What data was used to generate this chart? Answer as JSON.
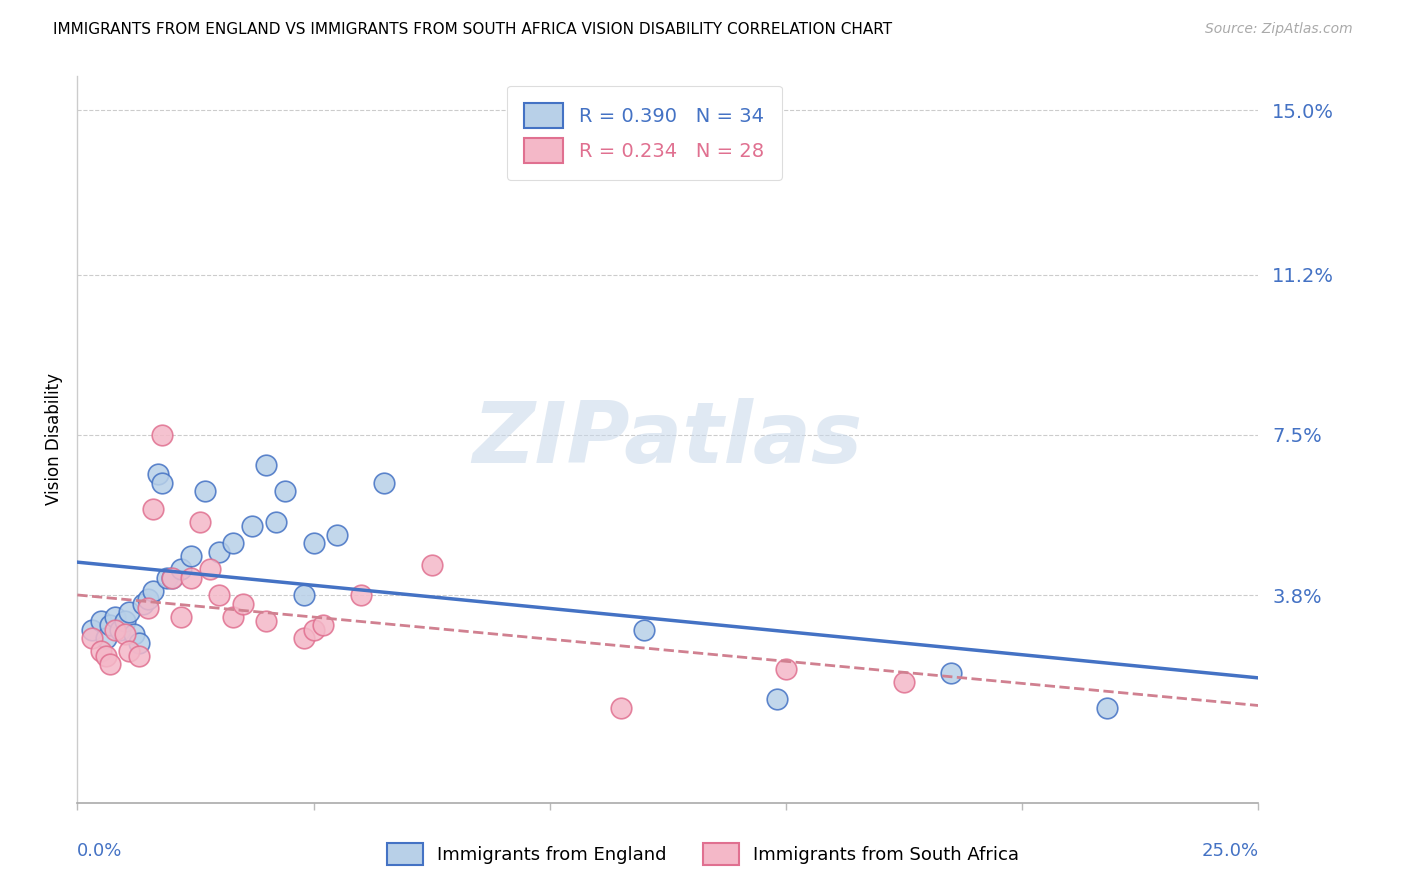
{
  "title": "IMMIGRANTS FROM ENGLAND VS IMMIGRANTS FROM SOUTH AFRICA VISION DISABILITY CORRELATION CHART",
  "source": "Source: ZipAtlas.com",
  "ylabel": "Vision Disability",
  "xlim": [
    0.0,
    0.25
  ],
  "ylim": [
    -0.01,
    0.158
  ],
  "england_face_color": "#b8d0e8",
  "england_edge_color": "#4472c4",
  "sa_face_color": "#f4b8c8",
  "sa_edge_color": "#e07090",
  "england_line_color": "#4472c4",
  "sa_line_color": "#d08090",
  "england_R": "0.390",
  "england_N": "34",
  "sa_R": "0.234",
  "sa_N": "28",
  "watermark": "ZIPatlas",
  "label_color": "#4472c4",
  "ytick_positions": [
    0.038,
    0.075,
    0.112,
    0.15
  ],
  "ytick_labels": [
    "3.8%",
    "7.5%",
    "11.2%",
    "15.0%"
  ],
  "england_x": [
    0.003,
    0.005,
    0.006,
    0.007,
    0.008,
    0.009,
    0.01,
    0.011,
    0.012,
    0.013,
    0.014,
    0.015,
    0.016,
    0.017,
    0.018,
    0.019,
    0.02,
    0.022,
    0.024,
    0.027,
    0.03,
    0.033,
    0.037,
    0.04,
    0.042,
    0.044,
    0.048,
    0.05,
    0.055,
    0.065,
    0.12,
    0.148,
    0.185,
    0.218
  ],
  "england_y": [
    0.03,
    0.032,
    0.028,
    0.031,
    0.033,
    0.03,
    0.032,
    0.034,
    0.029,
    0.027,
    0.036,
    0.037,
    0.039,
    0.066,
    0.064,
    0.042,
    0.042,
    0.044,
    0.047,
    0.062,
    0.048,
    0.05,
    0.054,
    0.068,
    0.055,
    0.062,
    0.038,
    0.05,
    0.052,
    0.064,
    0.03,
    0.014,
    0.02,
    0.012
  ],
  "sa_x": [
    0.003,
    0.005,
    0.006,
    0.007,
    0.008,
    0.01,
    0.011,
    0.013,
    0.015,
    0.016,
    0.018,
    0.02,
    0.022,
    0.024,
    0.026,
    0.028,
    0.03,
    0.033,
    0.035,
    0.04,
    0.048,
    0.05,
    0.052,
    0.06,
    0.075,
    0.115,
    0.15,
    0.175
  ],
  "sa_y": [
    0.028,
    0.025,
    0.024,
    0.022,
    0.03,
    0.029,
    0.025,
    0.024,
    0.035,
    0.058,
    0.075,
    0.042,
    0.033,
    0.042,
    0.055,
    0.044,
    0.038,
    0.033,
    0.036,
    0.032,
    0.028,
    0.03,
    0.031,
    0.038,
    0.045,
    0.012,
    0.021,
    0.018
  ]
}
